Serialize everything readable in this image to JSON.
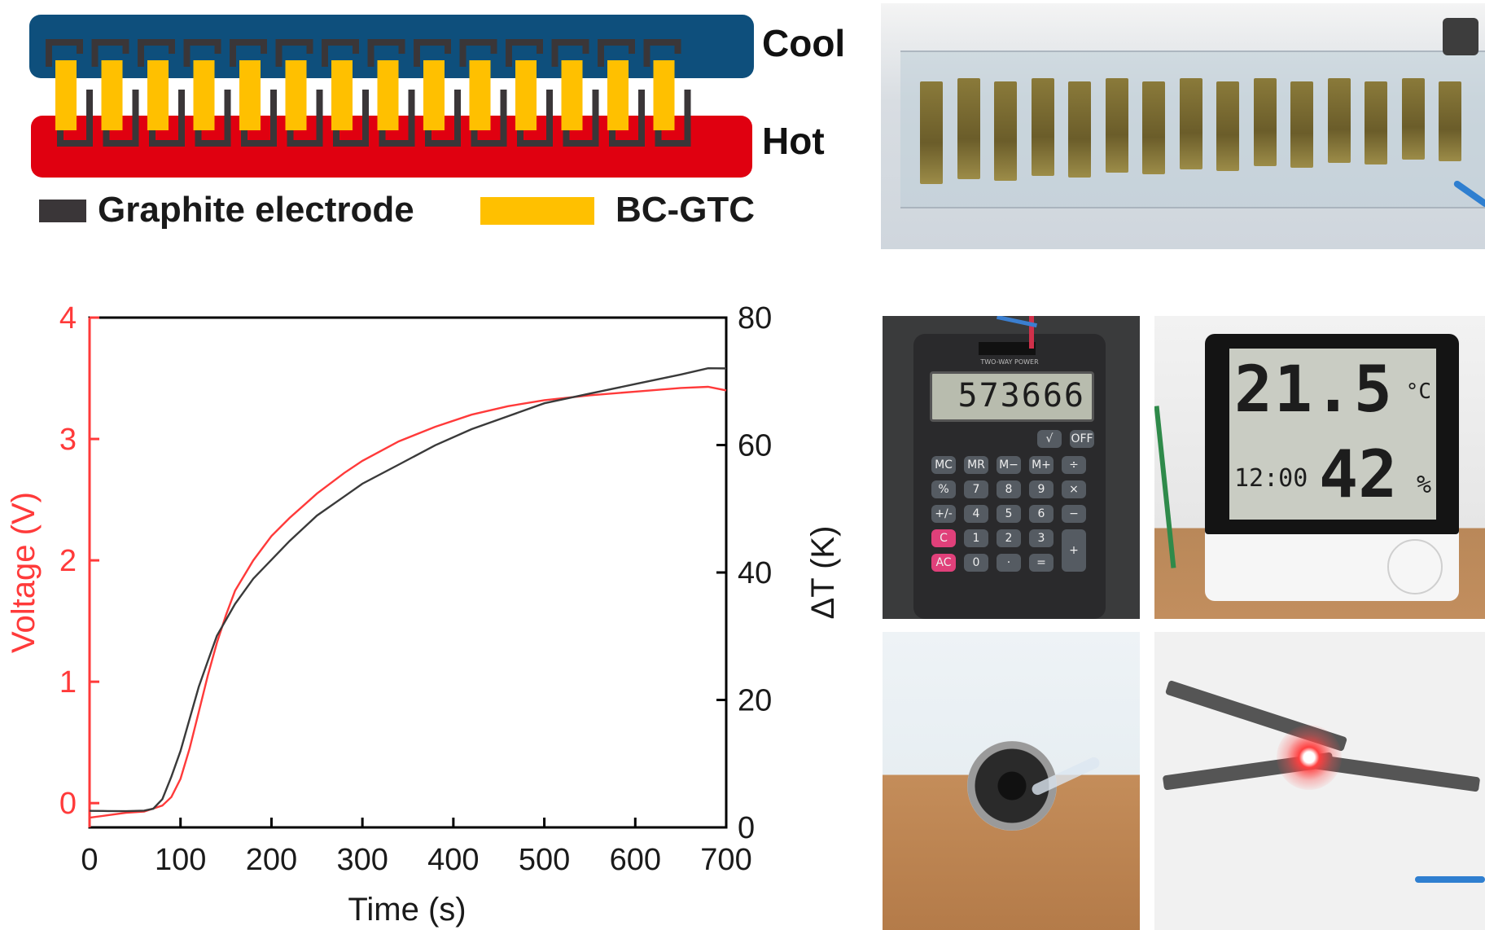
{
  "schematic": {
    "cool_label": "Cool",
    "hot_label": "Hot",
    "legend_graphite": "Graphite electrode",
    "legend_bcgtc": "BC-GTC",
    "cool_color": "#0e4f7c",
    "hot_color": "#e00010",
    "electrode_color": "#3a3638",
    "bcgtc_color": "#ffc000",
    "leg_count": 14
  },
  "calculator": {
    "display": "573666",
    "brand": "TWO-WAY POWER",
    "keys_row1": [
      "√",
      "OFF"
    ],
    "keys_row2": [
      "MC",
      "MR",
      "M−",
      "M+",
      "÷"
    ],
    "keys_row3": [
      "%",
      "7",
      "8",
      "9",
      "×"
    ],
    "keys_row4": [
      "+/-",
      "4",
      "5",
      "6",
      "−"
    ],
    "keys_row5": [
      "C",
      "1",
      "2",
      "3",
      "+"
    ],
    "keys_row6": [
      "AC",
      "0",
      "·",
      "="
    ]
  },
  "thermometer": {
    "temperature": "21.5",
    "temp_unit": "°C",
    "time": "12:00",
    "humidity": "42",
    "humidity_unit": "%"
  },
  "chart_data": {
    "type": "line",
    "xlabel": "Time (s)",
    "ylabel_left": "Voltage (V)",
    "ylabel_right": "ΔT (K)",
    "xlim": [
      0,
      700
    ],
    "ylim_left": [
      -0.2,
      4
    ],
    "ylim_right": [
      0,
      80
    ],
    "x_ticks": [
      0,
      100,
      200,
      300,
      400,
      500,
      600,
      700
    ],
    "y_left_ticks": [
      0,
      1,
      2,
      3,
      4
    ],
    "y_right_ticks": [
      0,
      20,
      40,
      60,
      80
    ],
    "grid": false,
    "series": [
      {
        "axis": "left",
        "color": "#ff3a3a",
        "points": [
          [
            0,
            -0.12
          ],
          [
            20,
            -0.1
          ],
          [
            40,
            -0.08
          ],
          [
            60,
            -0.07
          ],
          [
            80,
            -0.02
          ],
          [
            90,
            0.05
          ],
          [
            100,
            0.2
          ],
          [
            110,
            0.45
          ],
          [
            120,
            0.75
          ],
          [
            130,
            1.05
          ],
          [
            140,
            1.32
          ],
          [
            150,
            1.55
          ],
          [
            160,
            1.75
          ],
          [
            180,
            2.0
          ],
          [
            200,
            2.2
          ],
          [
            220,
            2.35
          ],
          [
            250,
            2.55
          ],
          [
            280,
            2.72
          ],
          [
            300,
            2.82
          ],
          [
            340,
            2.98
          ],
          [
            380,
            3.1
          ],
          [
            420,
            3.2
          ],
          [
            460,
            3.27
          ],
          [
            500,
            3.32
          ],
          [
            550,
            3.36
          ],
          [
            600,
            3.39
          ],
          [
            650,
            3.42
          ],
          [
            680,
            3.43
          ],
          [
            700,
            3.4
          ]
        ]
      },
      {
        "axis": "right",
        "color": "#3a3a3a",
        "points": [
          [
            0,
            2.6
          ],
          [
            20,
            2.6
          ],
          [
            40,
            2.6
          ],
          [
            60,
            2.7
          ],
          [
            70,
            3.0
          ],
          [
            80,
            4.5
          ],
          [
            90,
            8
          ],
          [
            100,
            12
          ],
          [
            110,
            17
          ],
          [
            120,
            22
          ],
          [
            130,
            26
          ],
          [
            140,
            30
          ],
          [
            150,
            32.5
          ],
          [
            160,
            35
          ],
          [
            180,
            39
          ],
          [
            200,
            42
          ],
          [
            220,
            45
          ],
          [
            250,
            49
          ],
          [
            280,
            52
          ],
          [
            300,
            54
          ],
          [
            340,
            57
          ],
          [
            380,
            60
          ],
          [
            420,
            62.5
          ],
          [
            460,
            64.5
          ],
          [
            500,
            66.5
          ],
          [
            550,
            68
          ],
          [
            600,
            69.5
          ],
          [
            650,
            71
          ],
          [
            680,
            72
          ],
          [
            700,
            72
          ]
        ]
      }
    ]
  }
}
